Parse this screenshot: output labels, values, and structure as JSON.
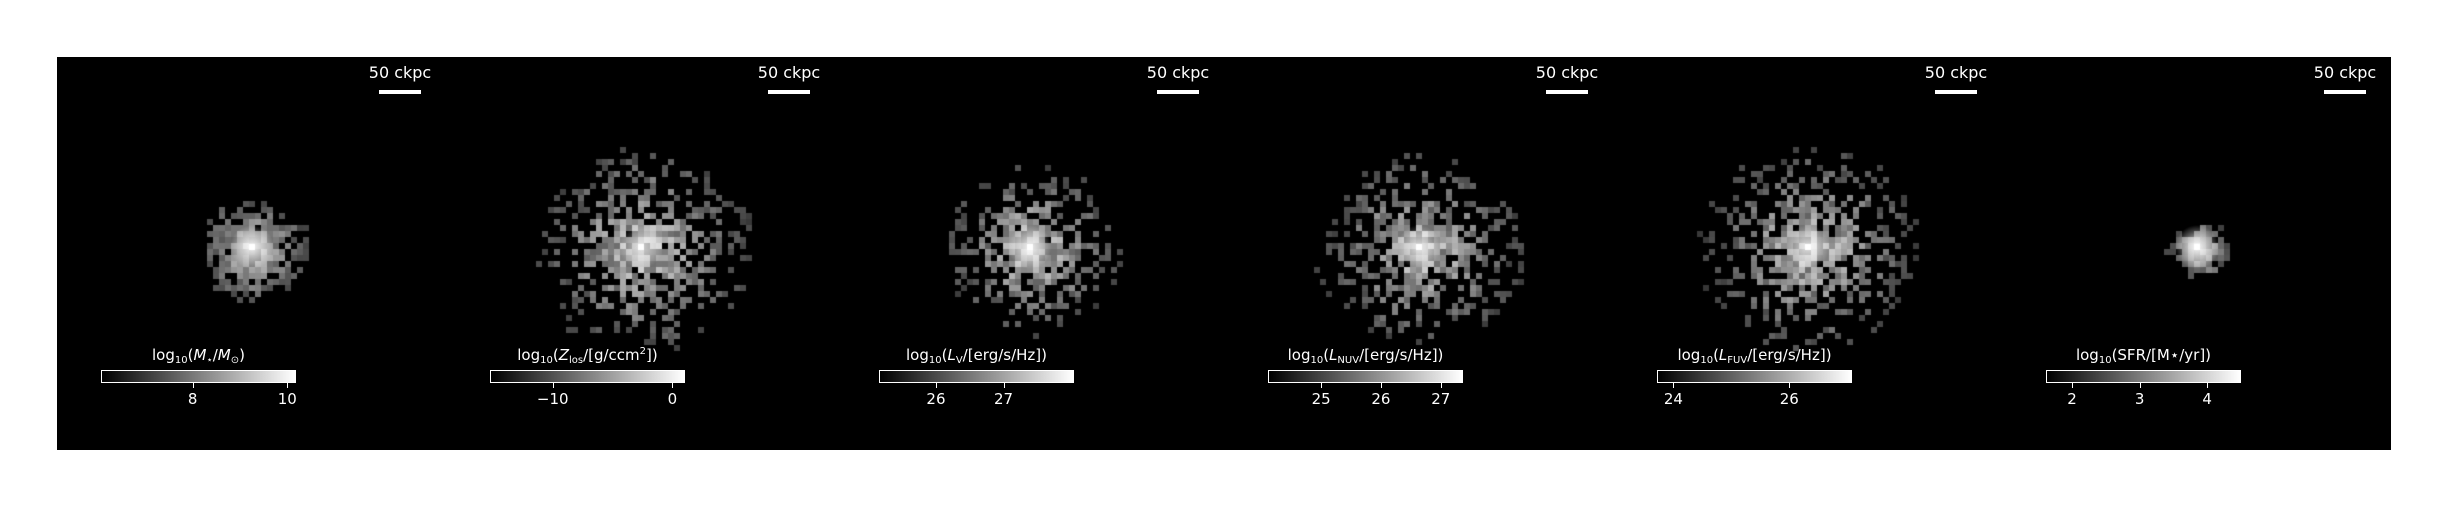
{
  "scalebar_label": "50 ckpc",
  "panels": [
    {
      "id": "stellar-mass",
      "scalebar": "50 ckpc",
      "colorbar": {
        "title_parts": [
          "log",
          "10",
          "(",
          "M",
          "⋆",
          "/",
          "M",
          "⊙",
          ")"
        ],
        "ticks": [
          {
            "label": "8",
            "frac": 0.47
          },
          {
            "label": "10",
            "frac": 0.96
          }
        ]
      },
      "map_style": {
        "spread": 0.35,
        "peak": 1.0,
        "density": 0.55,
        "core": 0.9
      }
    },
    {
      "id": "metallicity",
      "scalebar": "50 ckpc",
      "colorbar": {
        "title_parts": [
          "log",
          "10",
          "(",
          "Z",
          "los",
          "/[g/ccm",
          "2",
          "])"
        ],
        "ticks": [
          {
            "label": "−10",
            "frac": 0.32
          },
          {
            "label": "0",
            "frac": 0.94
          }
        ]
      },
      "map_style": {
        "spread": 0.75,
        "peak": 0.9,
        "density": 0.8,
        "core": 0.6
      }
    },
    {
      "id": "v-band-luminosity",
      "scalebar": "50 ckpc",
      "colorbar": {
        "title_parts": [
          "log",
          "10",
          "(",
          "L",
          "V",
          "/[erg/s/Hz])"
        ],
        "ticks": [
          {
            "label": "26",
            "frac": 0.29
          },
          {
            "label": "27",
            "frac": 0.64
          }
        ]
      },
      "map_style": {
        "spread": 0.6,
        "peak": 1.0,
        "density": 0.65,
        "core": 0.85
      }
    },
    {
      "id": "nuv-luminosity",
      "scalebar": "50 ckpc",
      "colorbar": {
        "title_parts": [
          "log",
          "10",
          "(",
          "L",
          "NUV",
          "/[erg/s/Hz])"
        ],
        "ticks": [
          {
            "label": "25",
            "frac": 0.27
          },
          {
            "label": "26",
            "frac": 0.58
          },
          {
            "label": "27",
            "frac": 0.89
          }
        ]
      },
      "map_style": {
        "spread": 0.7,
        "peak": 0.95,
        "density": 0.75,
        "core": 0.75
      }
    },
    {
      "id": "fuv-luminosity",
      "scalebar": "50 ckpc",
      "colorbar": {
        "title_parts": [
          "log",
          "10",
          "(",
          "L",
          "FUV",
          "/[erg/s/Hz])"
        ],
        "ticks": [
          {
            "label": "24",
            "frac": 0.08
          },
          {
            "label": "26",
            "frac": 0.68
          }
        ]
      },
      "map_style": {
        "spread": 0.75,
        "peak": 0.95,
        "density": 0.8,
        "core": 0.75
      }
    },
    {
      "id": "star-formation-rate",
      "scalebar": "50 ckpc",
      "colorbar": {
        "title_parts": [
          "log",
          "10",
          "(SFR/[M",
          "⋆",
          "/yr])"
        ],
        "ticks": [
          {
            "label": "2",
            "frac": 0.13
          },
          {
            "label": "3",
            "frac": 0.48
          },
          {
            "label": "4",
            "frac": 0.83
          }
        ]
      },
      "map_style": {
        "spread": 0.15,
        "peak": 1.0,
        "density": 0.25,
        "core": 0.95
      }
    }
  ]
}
